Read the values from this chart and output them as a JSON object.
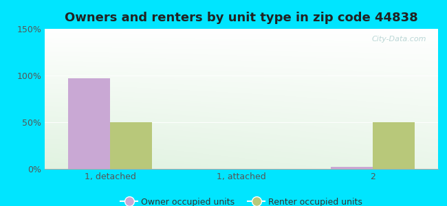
{
  "title": "Owners and renters by unit type in zip code 44838",
  "categories": [
    "1, detached",
    "1, attached",
    "2"
  ],
  "owner_values": [
    97,
    0,
    2
  ],
  "renter_values": [
    50,
    0,
    50
  ],
  "owner_color": "#c9a8d4",
  "renter_color": "#b8c87a",
  "owner_label": "Owner occupied units",
  "renter_label": "Renter occupied units",
  "ylim": [
    0,
    150
  ],
  "yticks": [
    0,
    50,
    100,
    150
  ],
  "ytick_labels": [
    "0%",
    "50%",
    "100%",
    "150%"
  ],
  "bar_width": 0.32,
  "fig_bg_color": "#00e5ff",
  "title_fontsize": 13,
  "legend_fontsize": 9,
  "tick_fontsize": 9,
  "watermark": "City-Data.com"
}
